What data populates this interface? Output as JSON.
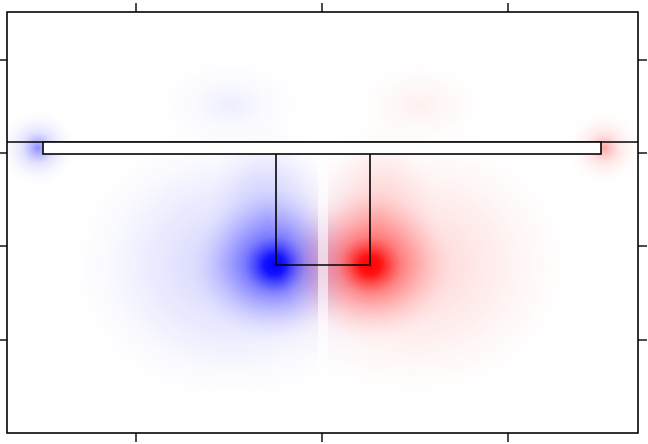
{
  "chart_data": {
    "type": "heatmap",
    "title": "",
    "xlabel": "",
    "ylabel": "",
    "colormap": "bwr",
    "colors": {
      "negative": "#0000ff",
      "positive": "#ff0000",
      "neutral": "#ffffff",
      "outline": "#000000"
    },
    "grid": false,
    "legend": "none",
    "hotspots": [
      {
        "sign": "negative",
        "strength": "strong"
      },
      {
        "sign": "positive",
        "strength": "strong"
      },
      {
        "sign": "negative",
        "strength": "weak"
      },
      {
        "sign": "positive",
        "strength": "weak"
      }
    ]
  }
}
